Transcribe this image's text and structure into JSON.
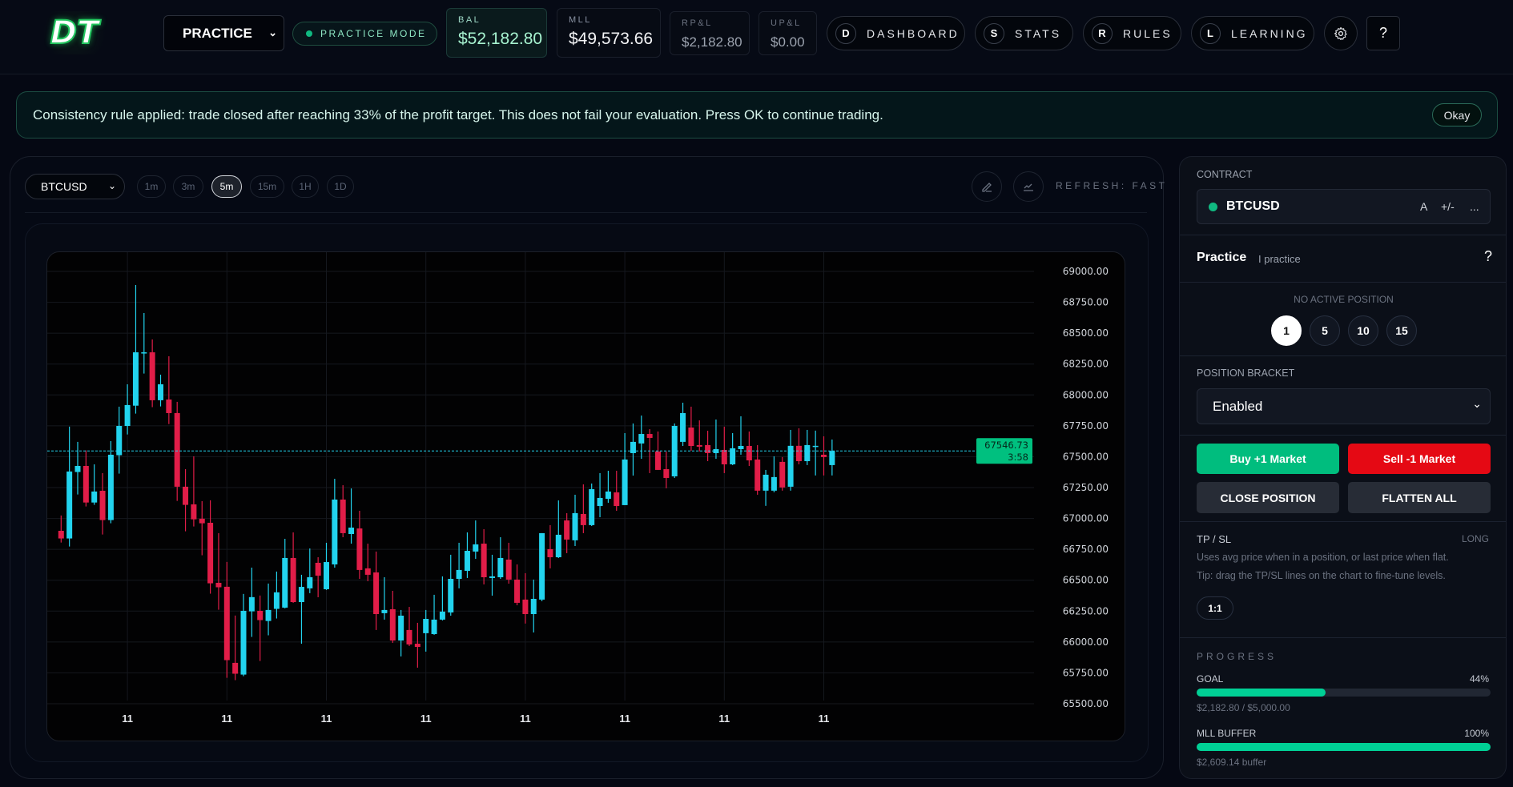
{
  "header": {
    "logo": "DT",
    "account_select": "PRACTICE",
    "mode_badge": "PRACTICE MODE",
    "stats": [
      {
        "label": "BAL",
        "value": "$52,182.80"
      },
      {
        "label": "MLL",
        "value": "$49,573.66"
      },
      {
        "label": "RP&L",
        "value": "$2,182.80"
      },
      {
        "label": "UP&L",
        "value": "$0.00"
      }
    ],
    "nav": [
      {
        "key": "D",
        "label": "DASHBOARD"
      },
      {
        "key": "S",
        "label": "STATS"
      },
      {
        "key": "R",
        "label": "RULES"
      },
      {
        "key": "L",
        "label": "LEARNING"
      }
    ],
    "help": "?"
  },
  "banner": {
    "message": "Consistency rule applied: trade closed after reaching 33% of the profit target. This does not fail your evaluation. Press OK to continue trading.",
    "ok_label": "Okay"
  },
  "chart_toolbar": {
    "symbol": "BTCUSD",
    "timeframes": [
      "1m",
      "3m",
      "5m",
      "15m",
      "1H",
      "1D"
    ],
    "active_timeframe": "5m",
    "refresh": "REFRESH: FAST"
  },
  "colors": {
    "up": "#22d3ee",
    "down": "#e11d48",
    "accent": "#00c07f",
    "sell": "#e50914"
  },
  "chart_data": {
    "type": "candlestick",
    "symbol": "BTCUSD",
    "interval": "5m",
    "ylim": [
      65500,
      69000
    ],
    "y_ticks": [
      "69000.00",
      "68750.00",
      "68500.00",
      "68250.00",
      "68000.00",
      "67750.00",
      "67500.00",
      "67250.00",
      "67000.00",
      "66750.00",
      "66500.00",
      "66250.00",
      "66000.00",
      "65750.00",
      "65500.00"
    ],
    "x_tick_labels": [
      "11",
      "11",
      "11",
      "11",
      "11",
      "11",
      "11",
      "11"
    ],
    "x_tick_candle_index": [
      8,
      20,
      32,
      44,
      56,
      68,
      80,
      92
    ],
    "last_price": "67546.73",
    "countdown": "3:58",
    "ohlc": [
      [
        66900,
        67024,
        66805,
        66838
      ],
      [
        66838,
        67743,
        66773,
        67380
      ],
      [
        67376,
        67620,
        67194,
        67425
      ],
      [
        67425,
        67551,
        67097,
        67129
      ],
      [
        67129,
        67438,
        67110,
        67218
      ],
      [
        67224,
        67367,
        66870,
        66987
      ],
      [
        66987,
        67626,
        66961,
        67516
      ],
      [
        67512,
        67905,
        67363,
        67749
      ],
      [
        67749,
        68086,
        67680,
        67918
      ],
      [
        67913,
        68890,
        67849,
        68345
      ],
      [
        68341,
        68663,
        68173,
        68345
      ],
      [
        68345,
        68449,
        67901,
        67957
      ],
      [
        67957,
        68164,
        67907,
        68086
      ],
      [
        67963,
        68313,
        67764,
        67853
      ],
      [
        67853,
        67944,
        67142,
        67257
      ],
      [
        67257,
        67399,
        66896,
        67110
      ],
      [
        67114,
        67503,
        66935,
        66993
      ],
      [
        66998,
        67140,
        66702,
        66961
      ],
      [
        66965,
        67147,
        66391,
        66475
      ],
      [
        66479,
        66881,
        66261,
        66443
      ],
      [
        66447,
        66648,
        65710,
        65853
      ],
      [
        65831,
        66214,
        65691,
        65743
      ],
      [
        65736,
        66389,
        65723,
        66252
      ],
      [
        66248,
        66602,
        66041,
        66363
      ],
      [
        66252,
        66376,
        65846,
        66177
      ],
      [
        66170,
        66473,
        66054,
        66259
      ],
      [
        66268,
        66570,
        66190,
        66402
      ],
      [
        66278,
        66835,
        66272,
        66680
      ],
      [
        66680,
        66887,
        66317,
        66323
      ],
      [
        66323,
        66544,
        65986,
        66446
      ],
      [
        66434,
        66757,
        66395,
        66524
      ],
      [
        66641,
        66686,
        66362,
        66537
      ],
      [
        66427,
        66803,
        66421,
        66647
      ],
      [
        66628,
        67321,
        66602,
        67153
      ],
      [
        67153,
        67269,
        66848,
        66881
      ],
      [
        66874,
        67243,
        66796,
        66926
      ],
      [
        66919,
        67062,
        66511,
        66583
      ],
      [
        66596,
        66796,
        66492,
        66544
      ],
      [
        66563,
        66732,
        66097,
        66226
      ],
      [
        66233,
        66524,
        66181,
        66259
      ],
      [
        66265,
        66414,
        65993,
        66012
      ],
      [
        66012,
        66259,
        65883,
        66213
      ],
      [
        66097,
        66284,
        65967,
        65980
      ],
      [
        65986,
        66155,
        65792,
        65960
      ],
      [
        66071,
        66259,
        65922,
        66187
      ],
      [
        66064,
        66382,
        66058,
        66181
      ],
      [
        66181,
        66531,
        66174,
        66246
      ],
      [
        66239,
        66706,
        66213,
        66511
      ],
      [
        66511,
        66803,
        66434,
        66583
      ],
      [
        66576,
        66887,
        66518,
        66738
      ],
      [
        66732,
        66984,
        66673,
        66790
      ],
      [
        66796,
        66913,
        66466,
        66524
      ],
      [
        66518,
        66706,
        66375,
        66531
      ],
      [
        66524,
        66848,
        66511,
        66680
      ],
      [
        66667,
        66803,
        66472,
        66505
      ],
      [
        66505,
        66628,
        66297,
        66317
      ],
      [
        66343,
        66557,
        66149,
        66226
      ],
      [
        66226,
        66505,
        66077,
        66349
      ],
      [
        66343,
        66881,
        66330,
        66881
      ],
      [
        66751,
        66946,
        66596,
        66686
      ],
      [
        66686,
        67146,
        66680,
        66868
      ],
      [
        66984,
        67043,
        66719,
        66829
      ],
      [
        66823,
        67192,
        66777,
        67043
      ],
      [
        67036,
        67276,
        66881,
        66946
      ],
      [
        66946,
        67283,
        66939,
        67237
      ],
      [
        67101,
        67367,
        67010,
        67166
      ],
      [
        67159,
        67386,
        67127,
        67218
      ],
      [
        67211,
        67386,
        67062,
        67101
      ],
      [
        67108,
        67691,
        67108,
        67477
      ],
      [
        67529,
        67769,
        67347,
        67620
      ],
      [
        67607,
        67833,
        67483,
        67684
      ],
      [
        67684,
        67723,
        67367,
        67652
      ],
      [
        67542,
        67704,
        67393,
        67393
      ],
      [
        67399,
        67542,
        67244,
        67328
      ],
      [
        67341,
        67769,
        67328,
        67749
      ],
      [
        67620,
        67937,
        67587,
        67853
      ],
      [
        67736,
        67905,
        67548,
        67587
      ],
      [
        67594,
        67794,
        67542,
        67581
      ],
      [
        67594,
        67710,
        67464,
        67529
      ],
      [
        67529,
        67801,
        67483,
        67561
      ],
      [
        67555,
        67743,
        67367,
        67438
      ],
      [
        67438,
        67691,
        67432,
        67568
      ],
      [
        67561,
        67827,
        67516,
        67587
      ],
      [
        67587,
        67704,
        67425,
        67470
      ],
      [
        67477,
        67594,
        67192,
        67225
      ],
      [
        67225,
        67393,
        67102,
        67354
      ],
      [
        67225,
        67503,
        67212,
        67335
      ],
      [
        67458,
        67497,
        67225,
        67251
      ],
      [
        67257,
        67717,
        67225,
        67588
      ],
      [
        67588,
        67730,
        67438,
        67464
      ],
      [
        67464,
        67717,
        67432,
        67594
      ],
      [
        67583,
        67711,
        67348,
        67588
      ],
      [
        67516,
        67665,
        67348,
        67497
      ],
      [
        67432,
        67639,
        67348,
        67546.73
      ]
    ]
  },
  "panel": {
    "contract_label": "CONTRACT",
    "contract": "BTCUSD",
    "contract_actions": [
      "A",
      "+/-",
      "..."
    ],
    "account_name": "Practice",
    "account_sub": "I practice",
    "help": "?",
    "position_status": "NO ACTIVE POSITION",
    "quantities": [
      "1",
      "5",
      "10",
      "15"
    ],
    "selected_quantity": "1",
    "bracket_label": "POSITION BRACKET",
    "bracket_value": "Enabled",
    "buy": "Buy +1 Market",
    "sell": "Sell -1 Market",
    "close": "CLOSE POSITION",
    "flatten": "FLATTEN ALL",
    "tpsl_label": "TP / SL",
    "tpsl_side": "LONG",
    "tpsl_help1": "Uses avg price when in a position, or last price when flat.",
    "tpsl_help2": "Tip: drag the TP/SL lines on the chart to fine-tune levels.",
    "ratio": "1:1",
    "progress_label": "PROGRESS",
    "goal_label": "GOAL",
    "goal_pct": "44%",
    "goal_fraction": 0.44,
    "goal_detail": "$2,182.80 / $5,000.00",
    "mll_label": "MLL BUFFER",
    "mll_pct": "100%",
    "mll_fraction": 1.0,
    "mll_detail": "$2,609.14 buffer"
  }
}
